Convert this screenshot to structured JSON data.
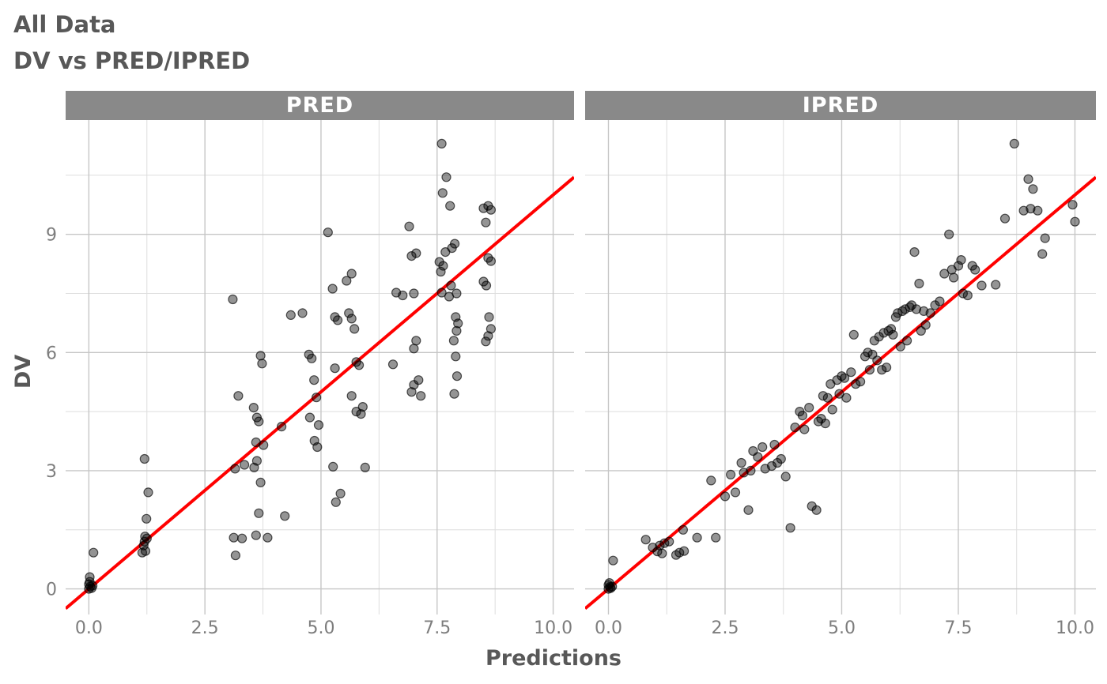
{
  "title": "All Data",
  "subtitle": "DV vs PRED/IPRED",
  "axes": {
    "x_label": "Predictions",
    "y_label": "DV",
    "x_ticks": [
      "0.0",
      "2.5",
      "5.0",
      "7.5",
      "10.0"
    ],
    "x_tick_values": [
      0,
      2.5,
      5,
      7.5,
      10
    ],
    "x_minor_values": [
      1.25,
      3.75,
      6.25,
      8.75
    ],
    "y_ticks": [
      "0",
      "3",
      "6",
      "9"
    ],
    "y_tick_values": [
      0,
      3,
      6,
      9
    ],
    "y_minor_values": [
      1.5,
      4.5,
      7.5,
      10.5
    ]
  },
  "colors": {
    "strip_bg": "#898989",
    "strip_text": "#ffffff",
    "title_text": "#585858",
    "axis_tick_text": "#7d7d7d",
    "grid_major": "#c6c6c6",
    "grid_minor": "#dedede",
    "point_fill": "#000000",
    "identity_line": "#ff0000"
  },
  "chart_data": {
    "type": "scatter",
    "title": "All Data",
    "subtitle": "DV vs PRED/IPRED",
    "xlabel": "Predictions",
    "ylabel": "DV",
    "xlim": [
      -0.5,
      10.45
    ],
    "ylim": [
      -0.65,
      11.9
    ],
    "grid": true,
    "legend": "none",
    "reference_line": {
      "type": "identity",
      "equation": "y = x",
      "color": "#ff0000",
      "width": 4
    },
    "panels": [
      {
        "label": "PRED",
        "points": [
          [
            0,
            0
          ],
          [
            0.03,
            0.06
          ],
          [
            0,
            0.12
          ],
          [
            0.06,
            0.02
          ],
          [
            0.02,
            0.18
          ],
          [
            0.08,
            0.08
          ],
          [
            0.02,
            0.3
          ],
          [
            0.1,
            0.92
          ],
          [
            1.15,
            0.92
          ],
          [
            1.22,
            0.96
          ],
          [
            1.18,
            1.1
          ],
          [
            1.2,
            1.2
          ],
          [
            1.25,
            1.28
          ],
          [
            1.21,
            1.33
          ],
          [
            1.24,
            1.78
          ],
          [
            1.28,
            2.45
          ],
          [
            1.2,
            3.3
          ],
          [
            3.1,
            7.35
          ],
          [
            3.22,
            4.9
          ],
          [
            3.15,
            3.05
          ],
          [
            3.35,
            3.15
          ],
          [
            3.12,
            1.3
          ],
          [
            3.3,
            1.28
          ],
          [
            3.16,
            0.85
          ],
          [
            3.55,
            4.6
          ],
          [
            3.62,
            4.35
          ],
          [
            3.7,
            5.92
          ],
          [
            3.73,
            5.72
          ],
          [
            3.66,
            4.25
          ],
          [
            3.6,
            3.72
          ],
          [
            3.76,
            3.65
          ],
          [
            3.62,
            3.25
          ],
          [
            3.56,
            3.08
          ],
          [
            3.7,
            2.7
          ],
          [
            3.66,
            1.92
          ],
          [
            3.6,
            1.36
          ],
          [
            3.85,
            1.3
          ],
          [
            4.15,
            4.12
          ],
          [
            4.22,
            1.85
          ],
          [
            4.35,
            6.95
          ],
          [
            4.6,
            7.0
          ],
          [
            4.74,
            5.95
          ],
          [
            4.8,
            5.85
          ],
          [
            4.85,
            5.3
          ],
          [
            4.9,
            4.86
          ],
          [
            4.76,
            4.35
          ],
          [
            4.95,
            4.16
          ],
          [
            4.86,
            3.76
          ],
          [
            4.92,
            3.6
          ],
          [
            5.15,
            9.05
          ],
          [
            5.25,
            7.62
          ],
          [
            5.3,
            6.9
          ],
          [
            5.36,
            6.82
          ],
          [
            5.3,
            5.6
          ],
          [
            5.26,
            3.1
          ],
          [
            5.32,
            2.2
          ],
          [
            5.42,
            2.42
          ],
          [
            5.55,
            7.82
          ],
          [
            5.66,
            8.0
          ],
          [
            5.6,
            7.0
          ],
          [
            5.66,
            6.86
          ],
          [
            5.72,
            6.6
          ],
          [
            5.76,
            5.76
          ],
          [
            5.82,
            5.68
          ],
          [
            5.66,
            4.9
          ],
          [
            5.76,
            4.5
          ],
          [
            5.86,
            4.44
          ],
          [
            5.9,
            4.62
          ],
          [
            5.95,
            3.08
          ],
          [
            6.55,
            5.7
          ],
          [
            6.62,
            7.52
          ],
          [
            6.76,
            7.45
          ],
          [
            6.9,
            9.2
          ],
          [
            6.95,
            8.45
          ],
          [
            7.05,
            8.52
          ],
          [
            7.0,
            7.5
          ],
          [
            7.05,
            6.3
          ],
          [
            7.0,
            6.1
          ],
          [
            7.1,
            5.3
          ],
          [
            7.0,
            5.18
          ],
          [
            6.95,
            5.0
          ],
          [
            7.15,
            4.9
          ],
          [
            7.6,
            11.3
          ],
          [
            7.7,
            10.45
          ],
          [
            7.62,
            10.05
          ],
          [
            7.78,
            9.72
          ],
          [
            7.55,
            8.3
          ],
          [
            7.63,
            8.2
          ],
          [
            7.58,
            8.05
          ],
          [
            7.68,
            8.55
          ],
          [
            7.82,
            8.65
          ],
          [
            7.88,
            8.76
          ],
          [
            7.92,
            7.5
          ],
          [
            7.6,
            7.52
          ],
          [
            7.76,
            7.42
          ],
          [
            7.8,
            7.7
          ],
          [
            7.9,
            6.9
          ],
          [
            7.95,
            6.74
          ],
          [
            7.92,
            6.55
          ],
          [
            7.86,
            6.3
          ],
          [
            7.9,
            5.9
          ],
          [
            7.93,
            5.4
          ],
          [
            7.87,
            4.95
          ],
          [
            8.5,
            9.66
          ],
          [
            8.6,
            9.72
          ],
          [
            8.66,
            9.62
          ],
          [
            8.55,
            9.3
          ],
          [
            8.6,
            8.4
          ],
          [
            8.66,
            8.32
          ],
          [
            8.5,
            7.8
          ],
          [
            8.56,
            7.7
          ],
          [
            8.62,
            6.9
          ],
          [
            8.66,
            6.6
          ],
          [
            8.6,
            6.42
          ],
          [
            8.55,
            6.28
          ]
        ]
      },
      {
        "label": "IPRED",
        "points": [
          [
            0,
            0
          ],
          [
            0.03,
            0.05
          ],
          [
            0,
            0.1
          ],
          [
            0.05,
            0.02
          ],
          [
            0.02,
            0.15
          ],
          [
            0.08,
            0.06
          ],
          [
            0.1,
            0.72
          ],
          [
            0.8,
            1.25
          ],
          [
            0.95,
            1.05
          ],
          [
            1.05,
            0.95
          ],
          [
            1.1,
            1.1
          ],
          [
            1.15,
            0.9
          ],
          [
            1.2,
            1.16
          ],
          [
            1.3,
            1.2
          ],
          [
            1.45,
            0.86
          ],
          [
            1.52,
            0.92
          ],
          [
            1.6,
            1.5
          ],
          [
            1.62,
            0.96
          ],
          [
            1.9,
            1.3
          ],
          [
            2.2,
            2.75
          ],
          [
            2.3,
            1.3
          ],
          [
            2.5,
            2.35
          ],
          [
            2.62,
            2.9
          ],
          [
            2.72,
            2.45
          ],
          [
            2.85,
            3.2
          ],
          [
            2.9,
            2.95
          ],
          [
            3.0,
            2.0
          ],
          [
            3.05,
            3.0
          ],
          [
            3.1,
            3.5
          ],
          [
            3.2,
            3.35
          ],
          [
            3.3,
            3.6
          ],
          [
            3.36,
            3.05
          ],
          [
            3.5,
            3.12
          ],
          [
            3.56,
            3.66
          ],
          [
            3.62,
            3.2
          ],
          [
            3.7,
            3.3
          ],
          [
            3.8,
            2.85
          ],
          [
            3.9,
            1.55
          ],
          [
            4.0,
            4.1
          ],
          [
            4.1,
            4.5
          ],
          [
            4.16,
            4.4
          ],
          [
            4.2,
            4.05
          ],
          [
            4.3,
            4.6
          ],
          [
            4.36,
            2.1
          ],
          [
            4.46,
            2.0
          ],
          [
            4.5,
            4.25
          ],
          [
            4.56,
            4.32
          ],
          [
            4.6,
            4.9
          ],
          [
            4.65,
            4.2
          ],
          [
            4.7,
            4.85
          ],
          [
            4.76,
            5.2
          ],
          [
            4.8,
            4.55
          ],
          [
            4.9,
            5.3
          ],
          [
            4.95,
            4.95
          ],
          [
            5.0,
            5.4
          ],
          [
            5.06,
            5.35
          ],
          [
            5.1,
            4.85
          ],
          [
            5.2,
            5.5
          ],
          [
            5.26,
            6.45
          ],
          [
            5.3,
            5.2
          ],
          [
            5.4,
            5.26
          ],
          [
            5.5,
            5.9
          ],
          [
            5.56,
            6.0
          ],
          [
            5.6,
            5.56
          ],
          [
            5.66,
            5.95
          ],
          [
            5.7,
            6.3
          ],
          [
            5.76,
            5.8
          ],
          [
            5.8,
            6.4
          ],
          [
            5.86,
            5.56
          ],
          [
            5.9,
            6.5
          ],
          [
            5.96,
            5.62
          ],
          [
            6.0,
            6.55
          ],
          [
            6.06,
            6.6
          ],
          [
            6.1,
            6.45
          ],
          [
            6.16,
            6.9
          ],
          [
            6.2,
            7.0
          ],
          [
            6.26,
            6.15
          ],
          [
            6.3,
            7.05
          ],
          [
            6.36,
            7.1
          ],
          [
            6.4,
            6.3
          ],
          [
            6.46,
            7.15
          ],
          [
            6.5,
            7.2
          ],
          [
            6.56,
            8.55
          ],
          [
            6.6,
            7.1
          ],
          [
            6.66,
            7.75
          ],
          [
            6.7,
            6.55
          ],
          [
            6.76,
            7.05
          ],
          [
            6.8,
            6.7
          ],
          [
            6.9,
            7.0
          ],
          [
            7.0,
            7.2
          ],
          [
            7.1,
            7.3
          ],
          [
            7.2,
            8.0
          ],
          [
            7.3,
            9.0
          ],
          [
            7.36,
            8.1
          ],
          [
            7.4,
            7.9
          ],
          [
            7.5,
            8.2
          ],
          [
            7.56,
            8.35
          ],
          [
            7.6,
            7.5
          ],
          [
            7.7,
            7.45
          ],
          [
            7.8,
            8.2
          ],
          [
            7.86,
            8.1
          ],
          [
            8.0,
            7.7
          ],
          [
            8.3,
            7.72
          ],
          [
            8.5,
            9.4
          ],
          [
            8.7,
            11.3
          ],
          [
            8.9,
            9.6
          ],
          [
            9.0,
            10.4
          ],
          [
            9.05,
            9.65
          ],
          [
            9.1,
            10.15
          ],
          [
            9.2,
            9.6
          ],
          [
            9.3,
            8.5
          ],
          [
            9.36,
            8.9
          ],
          [
            9.95,
            9.75
          ],
          [
            10.0,
            9.32
          ]
        ]
      }
    ]
  }
}
